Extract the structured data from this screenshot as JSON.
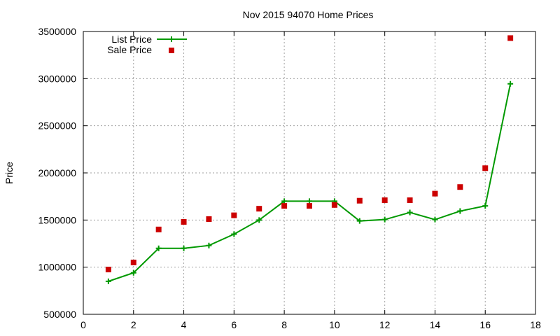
{
  "chart_data": {
    "type": "line",
    "title": "Nov 2015 94070 Home Prices",
    "xlabel": "",
    "ylabel": "Price",
    "xlim": [
      0,
      18
    ],
    "ylim": [
      500000,
      3500000
    ],
    "x_ticks": [
      0,
      2,
      4,
      6,
      8,
      10,
      12,
      14,
      16,
      18
    ],
    "y_ticks": [
      500000,
      1000000,
      1500000,
      2000000,
      2500000,
      3000000,
      3500000
    ],
    "grid": true,
    "legend_position": "top-left",
    "series": [
      {
        "name": "List Price",
        "style": "line-with-plus-markers",
        "color": "#009900",
        "x": [
          1,
          2,
          3,
          4,
          5,
          6,
          7,
          8,
          9,
          10,
          11,
          12,
          13,
          14,
          15,
          16,
          17
        ],
        "y": [
          850000,
          940000,
          1200000,
          1200000,
          1230000,
          1350000,
          1500000,
          1700000,
          1700000,
          1700000,
          1490000,
          1505000,
          1580000,
          1505000,
          1595000,
          1650000,
          2945000
        ]
      },
      {
        "name": "Sale Price",
        "style": "square-markers",
        "color": "#cc0000",
        "x": [
          1,
          2,
          3,
          4,
          5,
          6,
          7,
          8,
          9,
          10,
          11,
          12,
          13,
          14,
          15,
          16,
          17
        ],
        "y": [
          975000,
          1050000,
          1400000,
          1480000,
          1510000,
          1550000,
          1620000,
          1650000,
          1650000,
          1660000,
          1705000,
          1710000,
          1710000,
          1780000,
          1850000,
          2050000,
          3430000
        ]
      }
    ]
  }
}
